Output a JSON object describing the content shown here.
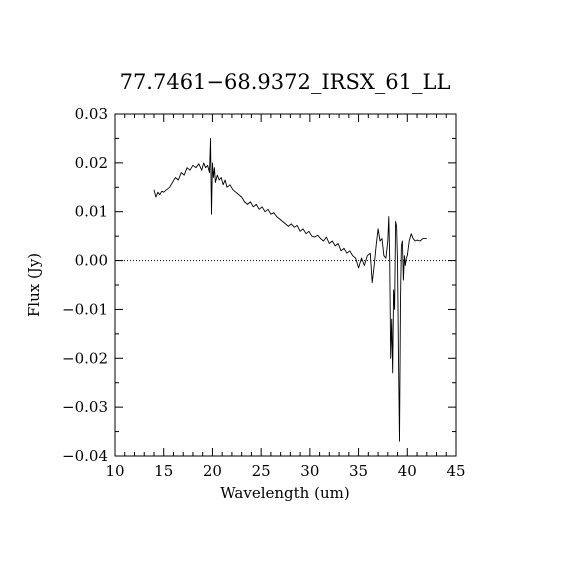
{
  "chart_data": {
    "type": "line",
    "title": "77.7461−68.9372_IRSX_61_LL",
    "xlabel": "Wavelength (um)",
    "ylabel": "Flux (Jy)",
    "xlim": [
      10,
      45
    ],
    "ylim": [
      -0.04,
      0.03
    ],
    "x_ticks": [
      10,
      15,
      20,
      25,
      30,
      35,
      40,
      45
    ],
    "x_tick_labels": [
      "10",
      "15",
      "20",
      "25",
      "30",
      "35",
      "40",
      "45"
    ],
    "y_ticks": [
      -0.04,
      -0.03,
      -0.02,
      -0.01,
      0.0,
      0.01,
      0.02,
      0.03
    ],
    "y_tick_labels": [
      "−0.04",
      "−0.03",
      "−0.02",
      "−0.01",
      "0.00",
      "0.01",
      "0.02",
      "0.03"
    ],
    "reference_line": {
      "y": 0.0,
      "style": "dotted"
    },
    "grid": false,
    "series": [
      {
        "x": [
          14.0,
          14.2,
          14.4,
          14.6,
          14.8,
          15.0,
          15.3,
          15.6,
          15.9,
          16.2,
          16.5,
          16.8,
          17.1,
          17.4,
          17.7,
          18.0,
          18.3,
          18.6,
          18.9,
          19.1,
          19.3,
          19.5,
          19.7,
          19.8,
          19.9,
          20.0,
          20.1,
          20.2,
          20.3,
          20.5,
          20.7,
          20.9,
          21.1,
          21.3,
          21.5,
          21.8,
          22.1,
          22.4,
          22.7,
          23.0,
          23.3,
          23.6,
          23.9,
          24.2,
          24.5,
          24.8,
          25.1,
          25.4,
          25.7,
          26.0,
          26.3,
          26.6,
          26.9,
          27.2,
          27.5,
          27.8,
          28.1,
          28.4,
          28.7,
          29.0,
          29.3,
          29.6,
          29.9,
          30.2,
          30.5,
          30.8,
          31.1,
          31.4,
          31.7,
          32.0,
          32.3,
          32.6,
          32.9,
          33.2,
          33.5,
          33.8,
          34.1,
          34.4,
          34.7,
          35.0,
          35.3,
          35.6,
          35.9,
          36.2,
          36.4,
          36.6,
          36.8,
          37.0,
          37.2,
          37.4,
          37.6,
          37.8,
          38.0,
          38.1,
          38.2,
          38.3,
          38.4,
          38.5,
          38.6,
          38.7,
          38.8,
          38.9,
          39.0,
          39.1,
          39.2,
          39.3,
          39.4,
          39.5,
          39.6,
          39.7,
          39.8,
          39.9,
          40.0,
          40.2,
          40.4,
          40.6,
          40.8,
          41.0,
          41.3,
          41.6,
          42.0
        ],
        "y": [
          0.0145,
          0.013,
          0.014,
          0.0135,
          0.0142,
          0.014,
          0.0145,
          0.015,
          0.016,
          0.017,
          0.0165,
          0.018,
          0.0175,
          0.019,
          0.0185,
          0.0195,
          0.019,
          0.0198,
          0.0185,
          0.02,
          0.019,
          0.0195,
          0.018,
          0.025,
          0.0095,
          0.02,
          0.017,
          0.019,
          0.016,
          0.0175,
          0.0165,
          0.017,
          0.0155,
          0.0165,
          0.015,
          0.0155,
          0.0145,
          0.014,
          0.0135,
          0.013,
          0.012,
          0.0115,
          0.012,
          0.011,
          0.0115,
          0.0105,
          0.011,
          0.01,
          0.0105,
          0.0095,
          0.0098,
          0.009,
          0.0085,
          0.008,
          0.0075,
          0.007,
          0.0075,
          0.0068,
          0.0072,
          0.006,
          0.0065,
          0.0055,
          0.006,
          0.005,
          0.0048,
          0.0052,
          0.0045,
          0.004,
          0.0048,
          0.0035,
          0.004,
          0.003,
          0.0035,
          0.002,
          0.0025,
          0.0015,
          0.002,
          0.001,
          0.0005,
          -0.0015,
          0.0005,
          -0.001,
          0.001,
          0.0015,
          -0.0045,
          -0.001,
          0.003,
          0.0065,
          0.004,
          0.0045,
          0.001,
          0.0005,
          0.004,
          0.009,
          0.0005,
          -0.02,
          -0.012,
          -0.023,
          -0.006,
          -0.01,
          0.008,
          0.007,
          0.0,
          -0.02,
          -0.037,
          -0.008,
          0.003,
          0.004,
          -0.004,
          0.001,
          -0.001,
          0.0005,
          0.001,
          0.004,
          0.0055,
          0.0045,
          0.004,
          0.0042,
          0.004,
          0.0045,
          0.0045
        ]
      }
    ]
  }
}
